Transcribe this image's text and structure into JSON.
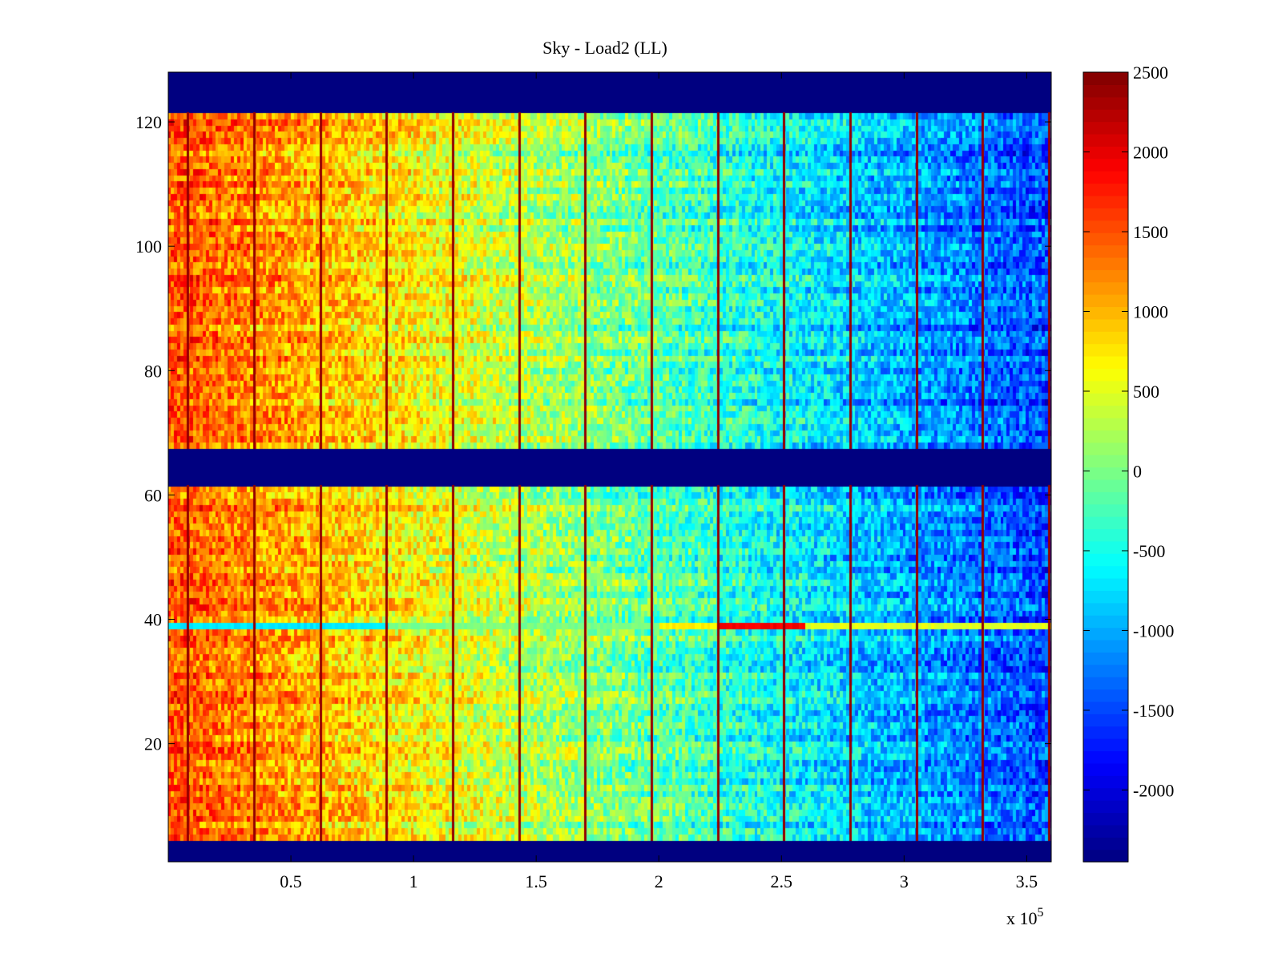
{
  "chart_data": {
    "type": "heatmap",
    "title": "Sky - Load2 (LL)",
    "xlabel": "",
    "ylabel": "",
    "x_multiplier_label": "x 10",
    "x_multiplier_exponent": "5",
    "xlim": [
      0,
      3.6
    ],
    "ylim": [
      1,
      128
    ],
    "x_ticks": [
      0.5,
      1,
      1.5,
      2,
      2.5,
      3,
      3.5
    ],
    "x_tick_labels": [
      "0.5",
      "1",
      "1.5",
      "2",
      "2.5",
      "3",
      "3.5"
    ],
    "y_ticks": [
      20,
      40,
      60,
      80,
      100,
      120
    ],
    "y_tick_labels": [
      "20",
      "40",
      "60",
      "80",
      "100",
      "120"
    ],
    "colorbar": {
      "colormap": "jet",
      "clim": [
        -2450,
        2500
      ],
      "ticks": [
        2500,
        2000,
        1500,
        1000,
        500,
        0,
        -500,
        -1000,
        -1500,
        -2000
      ],
      "tick_labels": [
        "2500",
        "2000",
        "1500",
        "1000",
        "500",
        "0",
        "-500",
        "-1000",
        "-1500",
        "-2000"
      ]
    },
    "trend": {
      "description_x_units": "x in units of 10^5",
      "value_at_x_start": 1500,
      "value_at_x_end": -1500,
      "noise_amplitude": 500
    },
    "empty_row_bands": [
      {
        "y_from": 1,
        "y_to": 4
      },
      {
        "y_from": 62,
        "y_to": 67
      },
      {
        "y_from": 122,
        "y_to": 128
      }
    ],
    "anomalous_row": {
      "y": 39,
      "segments": [
        {
          "x_from": 0,
          "x_to": 0.9,
          "value": -700
        },
        {
          "x_from": 0.9,
          "x_to": 2.0,
          "value": 0
        },
        {
          "x_from": 2.0,
          "x_to": 2.25,
          "value": 700
        },
        {
          "x_from": 2.25,
          "x_to": 2.6,
          "value": 1900
        },
        {
          "x_from": 2.6,
          "x_to": 3.6,
          "value": 500
        }
      ]
    },
    "spike_columns_x": [
      0.08,
      0.35,
      0.62,
      0.89,
      1.16,
      1.43,
      1.7,
      1.97,
      2.24,
      2.51,
      2.78,
      3.05,
      3.32,
      3.59
    ],
    "spike_value": 2400
  }
}
